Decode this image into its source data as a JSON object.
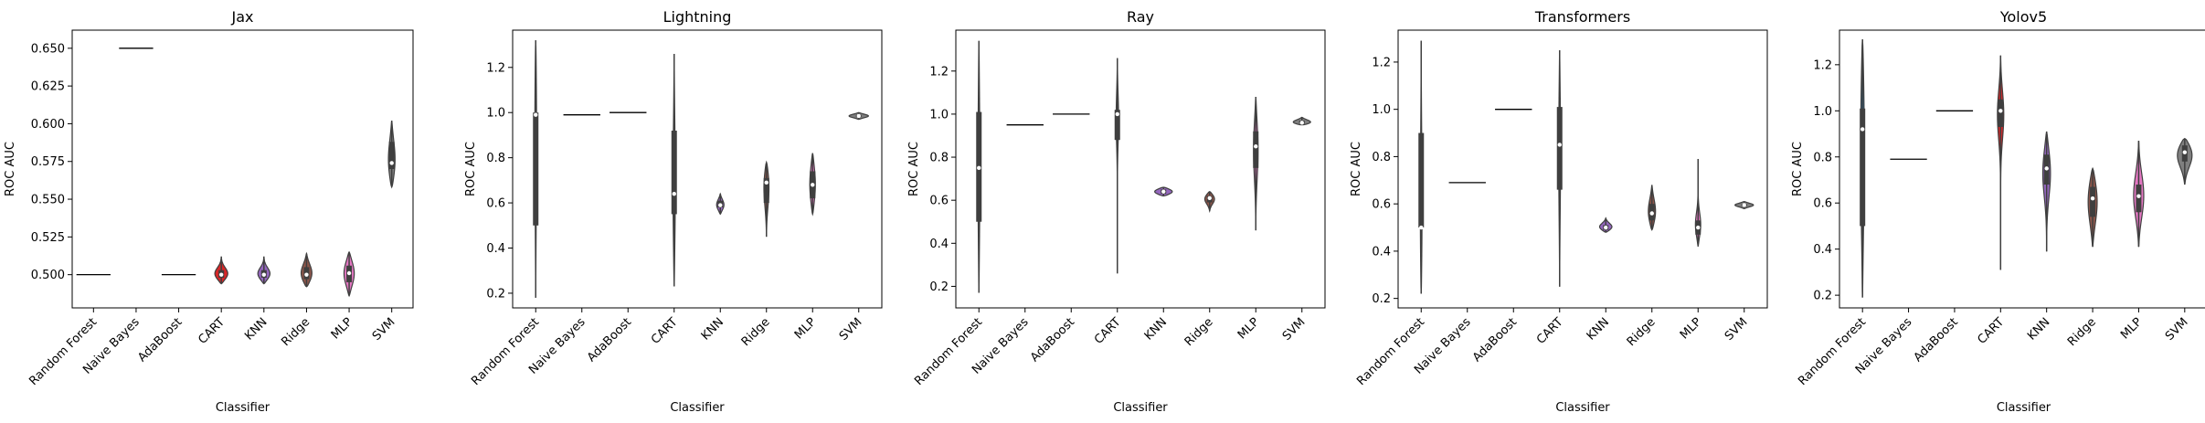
{
  "chart_data": [
    {
      "type": "violin",
      "title": "Jax",
      "xlabel": "Classifier",
      "ylabel": "ROC AUC",
      "categories": [
        "Random Forest",
        "Naive Bayes",
        "AdaBoost",
        "CART",
        "KNN",
        "Ridge",
        "MLP",
        "SVM"
      ],
      "ylim": [
        0.478,
        0.662
      ],
      "yticks": [
        0.5,
        0.525,
        0.55,
        0.575,
        0.6,
        0.625,
        0.65
      ],
      "ytick_labels": [
        "0.500",
        "0.525",
        "0.550",
        "0.575",
        "0.600",
        "0.625",
        "0.650"
      ],
      "colors": [
        "#1f77b4",
        "#ff7f0e",
        "#2ca02c",
        "#d62728",
        "#9467bd",
        "#8c564b",
        "#e377c2",
        "#7f7f7f"
      ],
      "violins": [
        {
          "label": "Random Forest",
          "min": 0.5,
          "q1": 0.5,
          "median": 0.5,
          "q3": 0.5,
          "max": 0.5,
          "width": 0.0
        },
        {
          "label": "Naive Bayes",
          "min": 0.65,
          "q1": 0.65,
          "median": 0.65,
          "q3": 0.65,
          "max": 0.65,
          "width": 0.0
        },
        {
          "label": "AdaBoost",
          "min": 0.5,
          "q1": 0.5,
          "median": 0.5,
          "q3": 0.5,
          "max": 0.5,
          "width": 0.0
        },
        {
          "label": "CART",
          "min": 0.494,
          "q1": 0.498,
          "median": 0.5,
          "q3": 0.503,
          "max": 0.512,
          "width": 0.32
        },
        {
          "label": "KNN",
          "min": 0.494,
          "q1": 0.498,
          "median": 0.5,
          "q3": 0.503,
          "max": 0.512,
          "width": 0.3
        },
        {
          "label": "Ridge",
          "min": 0.492,
          "q1": 0.497,
          "median": 0.5,
          "q3": 0.505,
          "max": 0.514,
          "width": 0.26
        },
        {
          "label": "MLP",
          "min": 0.486,
          "q1": 0.495,
          "median": 0.501,
          "q3": 0.506,
          "max": 0.515,
          "width": 0.24
        },
        {
          "label": "SVM",
          "min": 0.558,
          "q1": 0.57,
          "median": 0.574,
          "q3": 0.588,
          "max": 0.602,
          "width": 0.16
        }
      ]
    },
    {
      "type": "violin",
      "title": "Lightning",
      "xlabel": "Classifier",
      "ylabel": "ROC AUC",
      "categories": [
        "Random Forest",
        "Naive Bayes",
        "AdaBoost",
        "CART",
        "KNN",
        "Ridge",
        "MLP",
        "SVM"
      ],
      "ylim": [
        0.135,
        1.365
      ],
      "yticks": [
        0.2,
        0.4,
        0.6,
        0.8,
        1.0,
        1.2
      ],
      "ytick_labels": [
        "0.2",
        "0.4",
        "0.6",
        "0.8",
        "1.0",
        "1.2"
      ],
      "colors": [
        "#1f77b4",
        "#ff7f0e",
        "#2ca02c",
        "#d62728",
        "#9467bd",
        "#8c564b",
        "#e377c2",
        "#7f7f7f"
      ],
      "violins": [
        {
          "label": "Random Forest",
          "min": 0.18,
          "q1": 0.5,
          "median": 0.99,
          "q3": 1.0,
          "max": 1.32,
          "width": 0.04
        },
        {
          "label": "Naive Bayes",
          "min": 0.99,
          "q1": 0.99,
          "median": 0.99,
          "q3": 0.99,
          "max": 0.99,
          "width": 0.0
        },
        {
          "label": "AdaBoost",
          "min": 1.0,
          "q1": 1.0,
          "median": 1.0,
          "q3": 1.0,
          "max": 1.0,
          "width": 0.0
        },
        {
          "label": "CART",
          "min": 0.23,
          "q1": 0.55,
          "median": 0.64,
          "q3": 0.92,
          "max": 1.26,
          "width": 0.05
        },
        {
          "label": "KNN",
          "min": 0.55,
          "q1": 0.58,
          "median": 0.59,
          "q3": 0.61,
          "max": 0.64,
          "width": 0.16
        },
        {
          "label": "Ridge",
          "min": 0.45,
          "q1": 0.6,
          "median": 0.69,
          "q3": 0.71,
          "max": 0.78,
          "width": 0.12
        },
        {
          "label": "MLP",
          "min": 0.55,
          "q1": 0.62,
          "median": 0.68,
          "q3": 0.74,
          "max": 0.82,
          "width": 0.12
        },
        {
          "label": "SVM",
          "min": 0.97,
          "q1": 0.98,
          "median": 0.985,
          "q3": 0.99,
          "max": 1.0,
          "width": 0.42
        }
      ]
    },
    {
      "type": "violin",
      "title": "Ray",
      "xlabel": "Classifier",
      "ylabel": "ROC AUC",
      "categories": [
        "Random Forest",
        "Naive Bayes",
        "AdaBoost",
        "CART",
        "KNN",
        "Ridge",
        "MLP",
        "SVM"
      ],
      "ylim": [
        0.1,
        1.39
      ],
      "yticks": [
        0.2,
        0.4,
        0.6,
        0.8,
        1.0,
        1.2
      ],
      "ytick_labels": [
        "0.2",
        "0.4",
        "0.6",
        "0.8",
        "1.0",
        "1.2"
      ],
      "colors": [
        "#1f77b4",
        "#ff7f0e",
        "#2ca02c",
        "#d62728",
        "#9467bd",
        "#8c564b",
        "#e377c2",
        "#7f7f7f"
      ],
      "violins": [
        {
          "label": "Random Forest",
          "min": 0.17,
          "q1": 0.5,
          "median": 0.75,
          "q3": 1.01,
          "max": 1.34,
          "width": 0.04
        },
        {
          "label": "Naive Bayes",
          "min": 0.95,
          "q1": 0.95,
          "median": 0.95,
          "q3": 0.95,
          "max": 0.95,
          "width": 0.0
        },
        {
          "label": "AdaBoost",
          "min": 1.0,
          "q1": 1.0,
          "median": 1.0,
          "q3": 1.0,
          "max": 1.0,
          "width": 0.0
        },
        {
          "label": "CART",
          "min": 0.26,
          "q1": 0.88,
          "median": 1.0,
          "q3": 1.02,
          "max": 1.26,
          "width": 0.06
        },
        {
          "label": "KNN",
          "min": 0.62,
          "q1": 0.63,
          "median": 0.64,
          "q3": 0.65,
          "max": 0.66,
          "width": 0.38
        },
        {
          "label": "Ridge",
          "min": 0.55,
          "q1": 0.59,
          "median": 0.61,
          "q3": 0.62,
          "max": 0.64,
          "width": 0.22
        },
        {
          "label": "MLP",
          "min": 0.46,
          "q1": 0.75,
          "median": 0.85,
          "q3": 0.92,
          "max": 1.08,
          "width": 0.1
        },
        {
          "label": "SVM",
          "min": 0.95,
          "q1": 0.955,
          "median": 0.96,
          "q3": 0.97,
          "max": 0.985,
          "width": 0.4
        }
      ]
    },
    {
      "type": "violin",
      "title": "Transformers",
      "xlabel": "Classifier",
      "ylabel": "ROC AUC",
      "categories": [
        "Random Forest",
        "Naive Bayes",
        "AdaBoost",
        "CART",
        "KNN",
        "Ridge",
        "MLP",
        "SVM"
      ],
      "ylim": [
        0.16,
        1.335
      ],
      "yticks": [
        0.2,
        0.4,
        0.6,
        0.8,
        1.0,
        1.2
      ],
      "ytick_labels": [
        "0.2",
        "0.4",
        "0.6",
        "0.8",
        "1.0",
        "1.2"
      ],
      "colors": [
        "#1f77b4",
        "#ff7f0e",
        "#2ca02c",
        "#d62728",
        "#9467bd",
        "#8c564b",
        "#e377c2",
        "#7f7f7f"
      ],
      "violins": [
        {
          "label": "Random Forest",
          "min": 0.22,
          "q1": 0.5,
          "median": 0.5,
          "q3": 0.9,
          "max": 1.29,
          "width": 0.04
        },
        {
          "label": "Naive Bayes",
          "min": 0.69,
          "q1": 0.69,
          "median": 0.69,
          "q3": 0.69,
          "max": 0.69,
          "width": 0.0
        },
        {
          "label": "AdaBoost",
          "min": 1.0,
          "q1": 1.0,
          "median": 1.0,
          "q3": 1.0,
          "max": 1.0,
          "width": 0.0
        },
        {
          "label": "CART",
          "min": 0.25,
          "q1": 0.66,
          "median": 0.85,
          "q3": 1.01,
          "max": 1.25,
          "width": 0.04
        },
        {
          "label": "KNN",
          "min": 0.48,
          "q1": 0.49,
          "median": 0.5,
          "q3": 0.51,
          "max": 0.54,
          "width": 0.28
        },
        {
          "label": "Ridge",
          "min": 0.49,
          "q1": 0.53,
          "median": 0.56,
          "q3": 0.6,
          "max": 0.68,
          "width": 0.16
        },
        {
          "label": "MLP",
          "min": 0.42,
          "q1": 0.47,
          "median": 0.5,
          "q3": 0.53,
          "max": 0.79,
          "width": 0.14
        },
        {
          "label": "SVM",
          "min": 0.58,
          "q1": 0.59,
          "median": 0.595,
          "q3": 0.6,
          "max": 0.61,
          "width": 0.4
        }
      ]
    },
    {
      "type": "violin",
      "title": "Yolov5",
      "xlabel": "Classifier",
      "ylabel": "ROC AUC",
      "categories": [
        "Random Forest",
        "Naive Bayes",
        "AdaBoost",
        "CART",
        "KNN",
        "Ridge",
        "MLP",
        "SVM"
      ],
      "ylim": [
        0.145,
        1.35
      ],
      "yticks": [
        0.2,
        0.4,
        0.6,
        0.8,
        1.0,
        1.2
      ],
      "ytick_labels": [
        "0.2",
        "0.4",
        "0.6",
        "0.8",
        "1.0",
        "1.2"
      ],
      "colors": [
        "#1f77b4",
        "#ff7f0e",
        "#2ca02c",
        "#d62728",
        "#9467bd",
        "#8c564b",
        "#e377c2",
        "#7f7f7f"
      ],
      "violins": [
        {
          "label": "Random Forest",
          "min": 0.19,
          "q1": 0.5,
          "median": 0.92,
          "q3": 1.01,
          "max": 1.31,
          "width": 0.08
        },
        {
          "label": "Naive Bayes",
          "min": 0.79,
          "q1": 0.79,
          "median": 0.79,
          "q3": 0.79,
          "max": 0.79,
          "width": 0.0
        },
        {
          "label": "AdaBoost",
          "min": 1.0,
          "q1": 1.0,
          "median": 1.0,
          "q3": 1.0,
          "max": 1.0,
          "width": 0.0
        },
        {
          "label": "CART",
          "min": 0.31,
          "q1": 0.93,
          "median": 1.0,
          "q3": 1.05,
          "max": 1.24,
          "width": 0.16
        },
        {
          "label": "KNN",
          "min": 0.39,
          "q1": 0.68,
          "median": 0.75,
          "q3": 0.81,
          "max": 0.91,
          "width": 0.18
        },
        {
          "label": "Ridge",
          "min": 0.41,
          "q1": 0.54,
          "median": 0.62,
          "q3": 0.67,
          "max": 0.75,
          "width": 0.2
        },
        {
          "label": "MLP",
          "min": 0.41,
          "q1": 0.56,
          "median": 0.63,
          "q3": 0.68,
          "max": 0.87,
          "width": 0.22
        },
        {
          "label": "SVM",
          "min": 0.68,
          "q1": 0.78,
          "median": 0.82,
          "q3": 0.85,
          "max": 0.88,
          "width": 0.34
        }
      ]
    }
  ]
}
